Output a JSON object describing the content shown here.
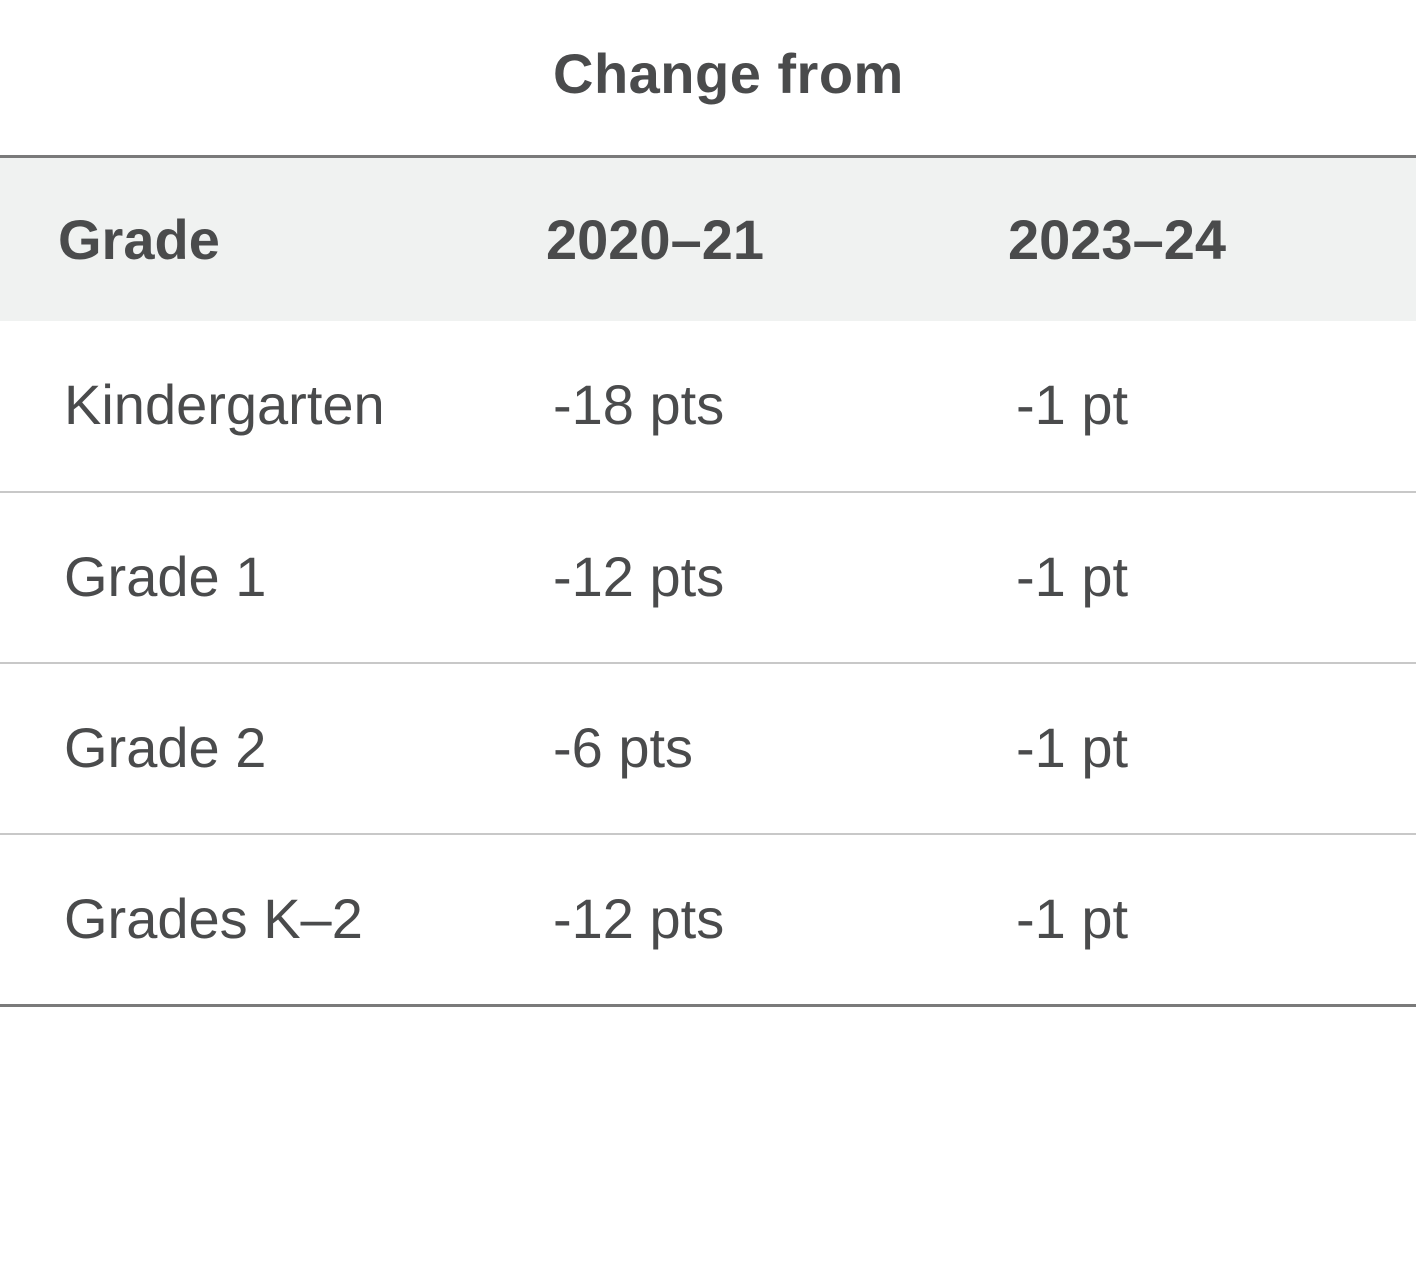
{
  "title": "Change from",
  "table": {
    "headers": [
      "Grade",
      "2020–21",
      "2023–24"
    ],
    "rows": [
      [
        "Kindergarten",
        "-18 pts",
        "-1 pt"
      ],
      [
        "Grade 1",
        "-12 pts",
        "-1 pt"
      ],
      [
        "Grade 2",
        "-6 pts",
        "-1 pt"
      ],
      [
        "Grades K–2",
        "-12 pts",
        "-1 pt"
      ]
    ]
  },
  "colors": {
    "text": "#4a4b4c",
    "header_background": "#f0f2f1",
    "rule_strong": "#7a7a7a",
    "rule_light": "#c8c8c8"
  }
}
